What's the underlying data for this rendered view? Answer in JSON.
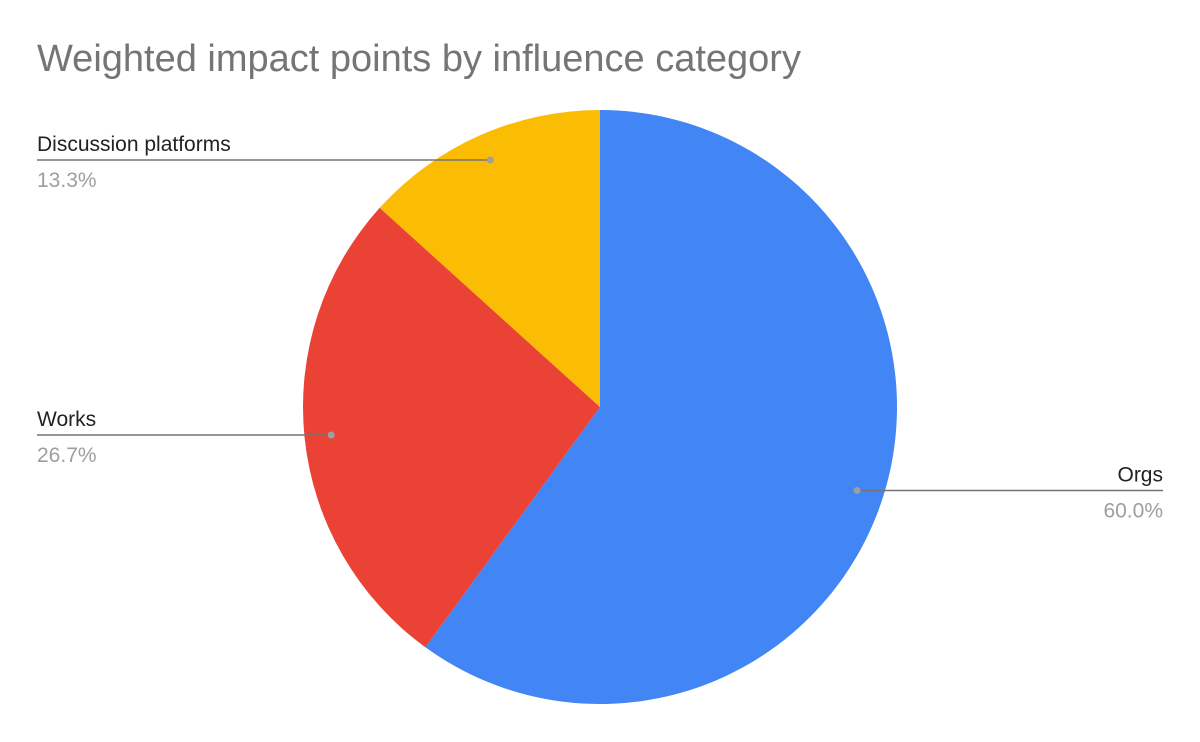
{
  "chart_data": {
    "type": "pie",
    "title": "Weighted impact points by influence category",
    "slices": [
      {
        "label": "Orgs",
        "value": 60.0,
        "percent_label": "60.0%",
        "color": "#4285F4"
      },
      {
        "label": "Works",
        "value": 26.7,
        "percent_label": "26.7%",
        "color": "#EA4335"
      },
      {
        "label": "Discussion platforms",
        "value": 13.3,
        "percent_label": "13.3%",
        "color": "#FBBC04"
      }
    ],
    "start_angle": "12 o'clock",
    "direction": "clockwise",
    "legend": "none",
    "leader_line_color": "#757575"
  }
}
